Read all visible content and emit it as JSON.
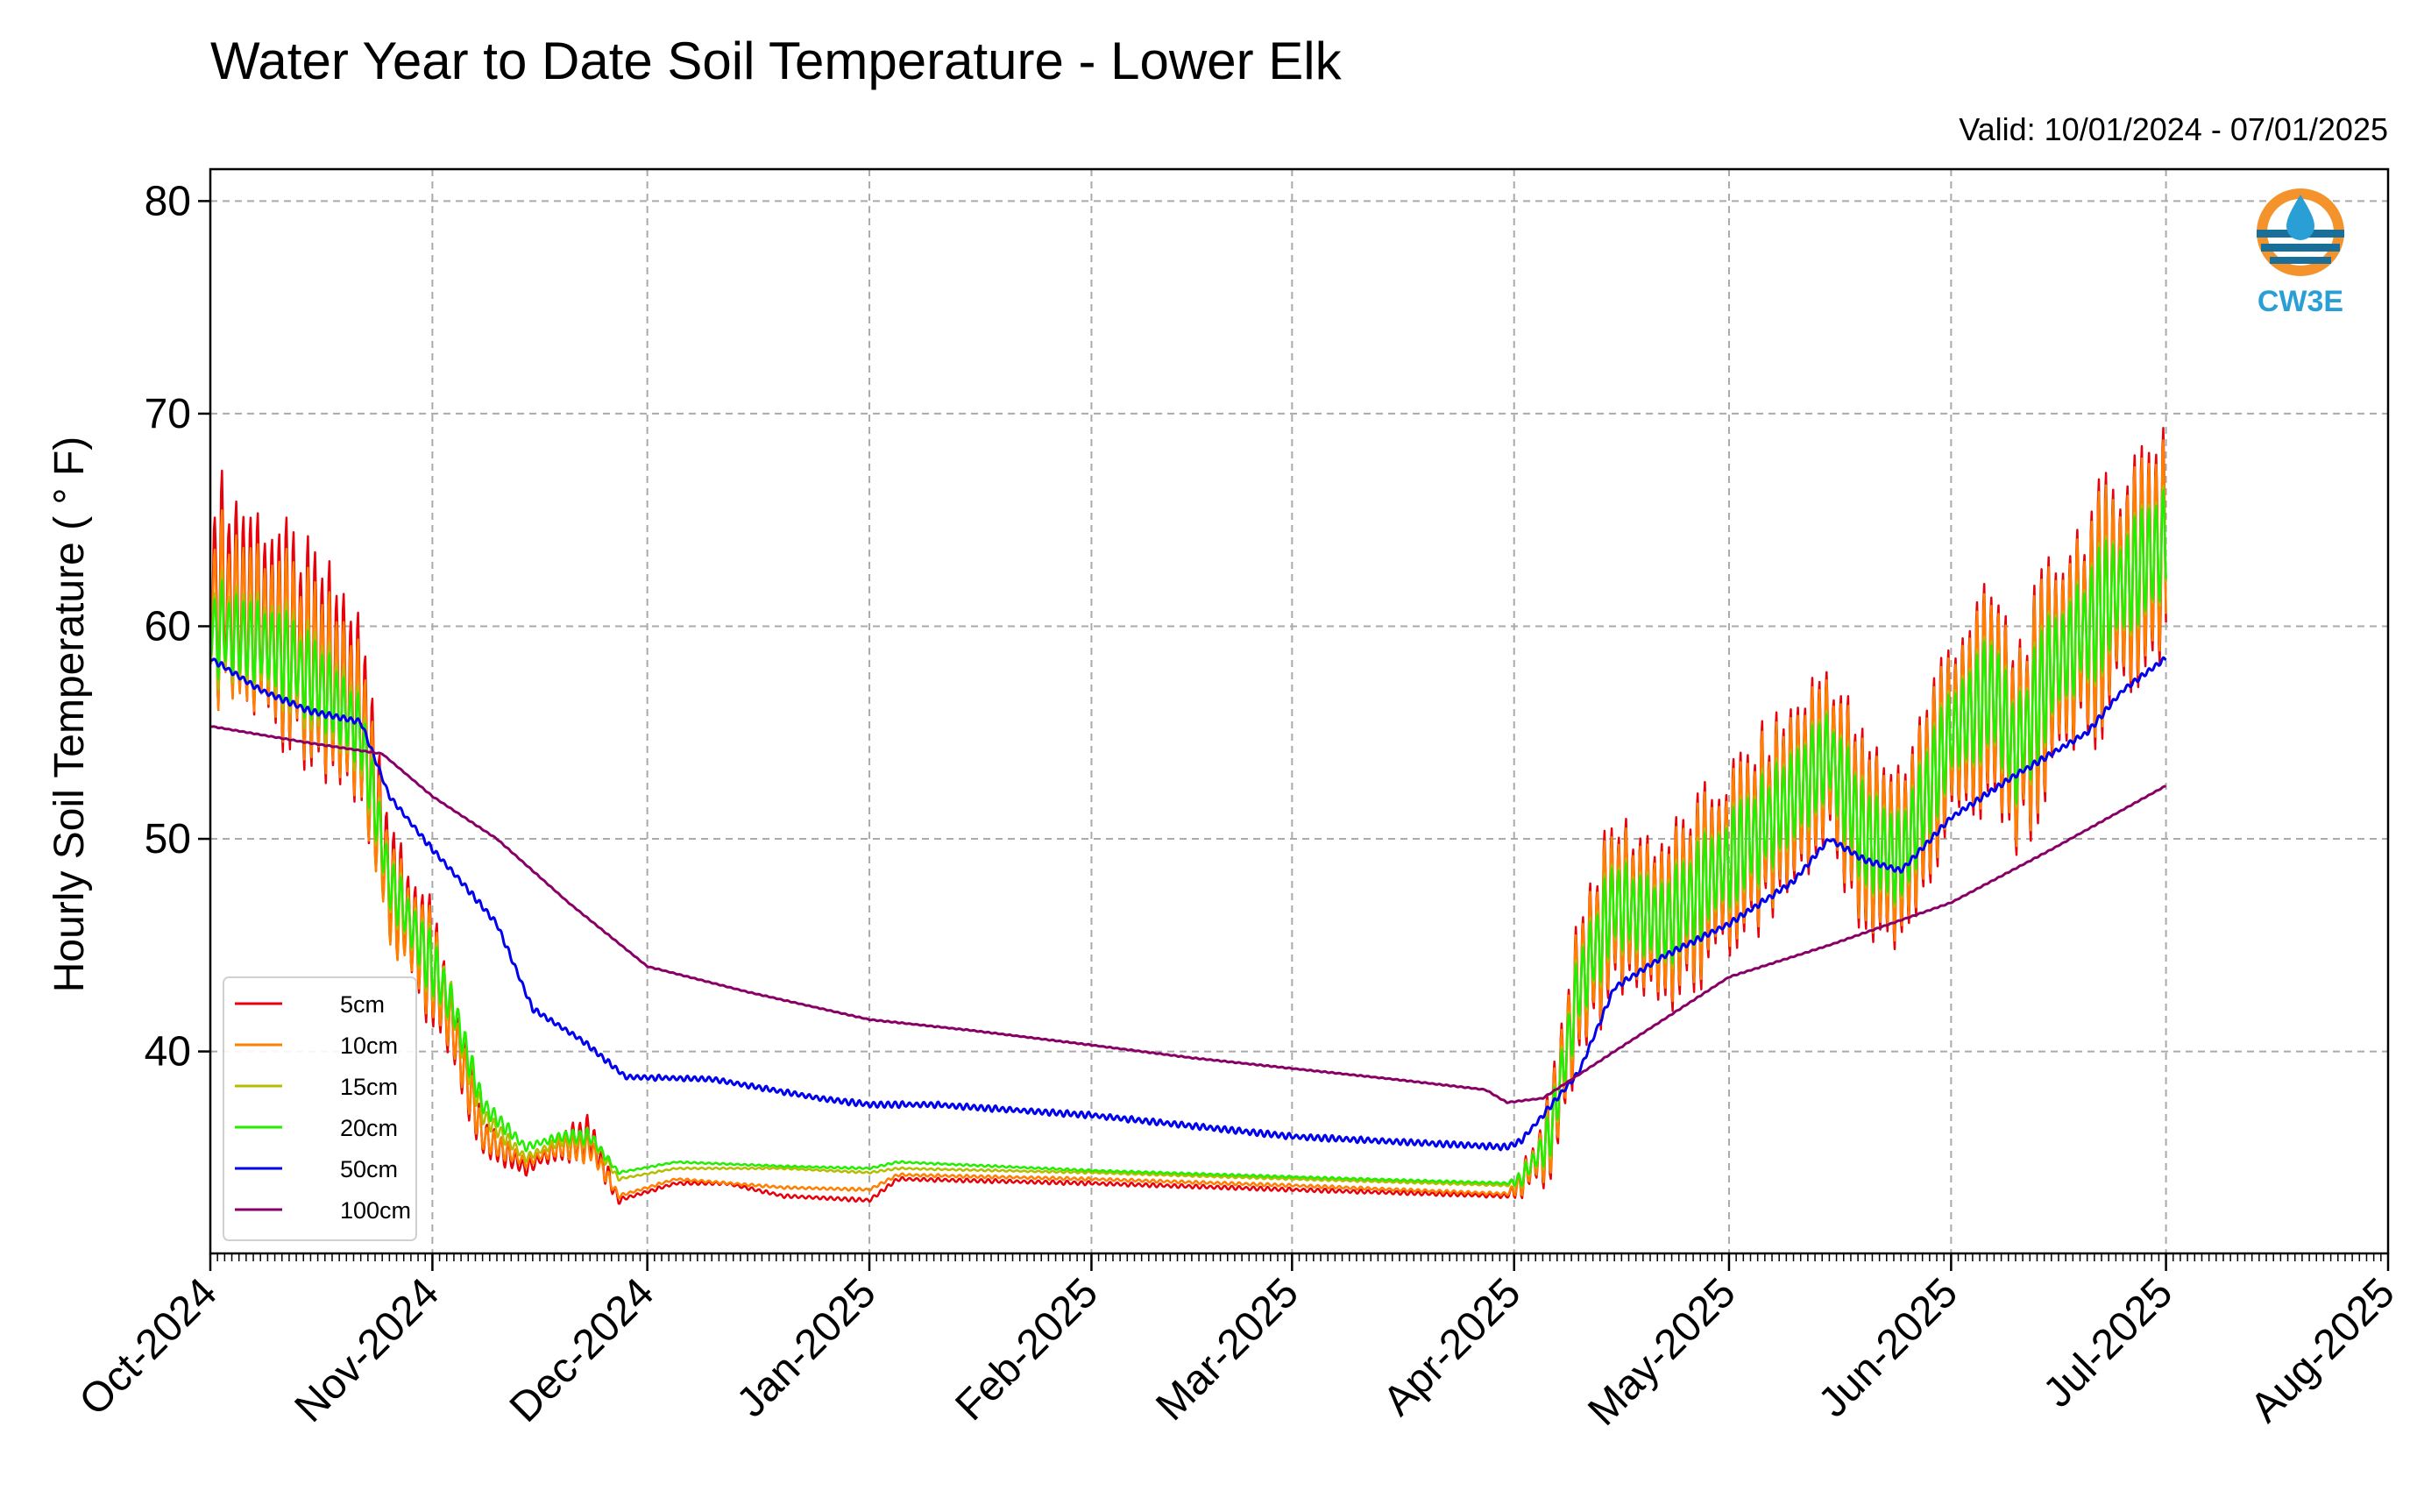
{
  "chart_data": {
    "type": "line",
    "title": "Water Year to Date Soil Temperature - Lower Elk",
    "subtitle": "Valid: 10/01/2024 - 07/01/2025",
    "ylabel": "Hourly Soil Temperature ( ° F)",
    "xlabel": "",
    "xlim": [
      "2024-10-01",
      "2025-08-01"
    ],
    "ylim": [
      30.5,
      81.5
    ],
    "yticks": [
      40,
      50,
      60,
      70,
      80
    ],
    "xticks": [
      {
        "date": "2024-10-01",
        "label": "Oct-2024"
      },
      {
        "date": "2024-11-01",
        "label": "Nov-2024"
      },
      {
        "date": "2024-12-01",
        "label": "Dec-2024"
      },
      {
        "date": "2025-01-01",
        "label": "Jan-2025"
      },
      {
        "date": "2025-02-01",
        "label": "Feb-2025"
      },
      {
        "date": "2025-03-01",
        "label": "Mar-2025"
      },
      {
        "date": "2025-04-01",
        "label": "Apr-2025"
      },
      {
        "date": "2025-05-01",
        "label": "May-2025"
      },
      {
        "date": "2025-06-01",
        "label": "Jun-2025"
      },
      {
        "date": "2025-07-01",
        "label": "Jul-2025"
      },
      {
        "date": "2025-08-01",
        "label": "Aug-2025"
      }
    ],
    "grid": true,
    "legend_position": "lower-left",
    "logo_text": "CW3E",
    "series": [
      {
        "name": "5cm",
        "color": "#e8000b",
        "mean": [
          [
            "2024-10-01",
            62
          ],
          [
            "2024-10-10",
            60
          ],
          [
            "2024-10-17",
            58
          ],
          [
            "2024-10-22",
            56
          ],
          [
            "2024-10-26",
            48
          ],
          [
            "2024-11-01",
            44
          ],
          [
            "2024-11-04",
            41
          ],
          [
            "2024-11-08",
            36
          ],
          [
            "2024-11-14",
            34.5
          ],
          [
            "2024-11-19",
            35.5
          ],
          [
            "2024-11-23",
            36
          ],
          [
            "2024-11-27",
            33
          ],
          [
            "2024-12-05",
            33.8
          ],
          [
            "2024-12-12",
            33.8
          ],
          [
            "2024-12-20",
            33.2
          ],
          [
            "2025-01-01",
            33
          ],
          [
            "2025-01-05",
            34
          ],
          [
            "2025-02-01",
            33.8
          ],
          [
            "2025-03-01",
            33.5
          ],
          [
            "2025-03-31",
            33.2
          ],
          [
            "2025-04-02",
            33.8
          ],
          [
            "2025-04-06",
            36
          ],
          [
            "2025-04-10",
            43
          ],
          [
            "2025-04-15",
            47
          ],
          [
            "2025-04-22",
            46
          ],
          [
            "2025-05-01",
            49
          ],
          [
            "2025-05-10",
            52
          ],
          [
            "2025-05-15",
            54
          ],
          [
            "2025-05-20",
            50
          ],
          [
            "2025-05-25",
            49
          ],
          [
            "2025-06-01",
            55
          ],
          [
            "2025-06-07",
            57
          ],
          [
            "2025-06-10",
            54
          ],
          [
            "2025-06-15",
            58
          ],
          [
            "2025-06-20",
            60
          ],
          [
            "2025-06-25",
            62
          ],
          [
            "2025-07-01",
            64
          ]
        ],
        "amp": [
          [
            "2024-10-01",
            12
          ],
          [
            "2024-10-20",
            11
          ],
          [
            "2024-10-26",
            8
          ],
          [
            "2024-11-02",
            6
          ],
          [
            "2024-11-08",
            2
          ],
          [
            "2024-11-16",
            0.5
          ],
          [
            "2024-11-21",
            3
          ],
          [
            "2024-11-26",
            1
          ],
          [
            "2024-11-28",
            0.2
          ],
          [
            "2025-03-31",
            0.2
          ],
          [
            "2025-04-04",
            3
          ],
          [
            "2025-04-10",
            9
          ],
          [
            "2025-05-01",
            10
          ],
          [
            "2025-06-01",
            11
          ],
          [
            "2025-06-15",
            12
          ],
          [
            "2025-07-01",
            14
          ]
        ]
      },
      {
        "name": "10cm",
        "color": "#ff7f00",
        "mean": [
          [
            "2024-10-01",
            61
          ],
          [
            "2024-10-10",
            59.5
          ],
          [
            "2024-10-17",
            57.5
          ],
          [
            "2024-10-22",
            55.5
          ],
          [
            "2024-10-26",
            47.5
          ],
          [
            "2024-11-01",
            44
          ],
          [
            "2024-11-04",
            41
          ],
          [
            "2024-11-08",
            36
          ],
          [
            "2024-11-14",
            34.8
          ],
          [
            "2024-11-19",
            35.5
          ],
          [
            "2024-11-23",
            35.5
          ],
          [
            "2024-11-27",
            33.2
          ],
          [
            "2024-12-05",
            34
          ],
          [
            "2024-12-20",
            33.6
          ],
          [
            "2025-01-01",
            33.5
          ],
          [
            "2025-01-05",
            34.2
          ],
          [
            "2025-02-01",
            34
          ],
          [
            "2025-03-01",
            33.7
          ],
          [
            "2025-03-31",
            33.3
          ],
          [
            "2025-04-02",
            33.8
          ],
          [
            "2025-04-06",
            36
          ],
          [
            "2025-04-10",
            43
          ],
          [
            "2025-04-15",
            47
          ],
          [
            "2025-04-22",
            46
          ],
          [
            "2025-05-01",
            49
          ],
          [
            "2025-05-10",
            52
          ],
          [
            "2025-05-15",
            54
          ],
          [
            "2025-05-20",
            50
          ],
          [
            "2025-05-25",
            49
          ],
          [
            "2025-06-01",
            55
          ],
          [
            "2025-06-07",
            57
          ],
          [
            "2025-06-10",
            54
          ],
          [
            "2025-06-15",
            58
          ],
          [
            "2025-06-20",
            60
          ],
          [
            "2025-06-25",
            62
          ],
          [
            "2025-07-01",
            64
          ]
        ],
        "amp": [
          [
            "2024-10-01",
            10
          ],
          [
            "2024-10-20",
            9
          ],
          [
            "2024-10-26",
            7
          ],
          [
            "2024-11-02",
            5
          ],
          [
            "2024-11-08",
            1.5
          ],
          [
            "2024-11-16",
            0.4
          ],
          [
            "2024-11-21",
            2
          ],
          [
            "2024-11-26",
            0.6
          ],
          [
            "2024-11-28",
            0.15
          ],
          [
            "2025-03-31",
            0.15
          ],
          [
            "2025-04-04",
            2.5
          ],
          [
            "2025-04-10",
            8
          ],
          [
            "2025-05-01",
            9
          ],
          [
            "2025-06-01",
            10
          ],
          [
            "2025-06-15",
            11
          ],
          [
            "2025-07-01",
            12.5
          ]
        ]
      },
      {
        "name": "15cm",
        "color": "#b5bd00",
        "mean": [
          [
            "2024-10-01",
            60
          ],
          [
            "2024-10-10",
            59
          ],
          [
            "2024-10-17",
            57
          ],
          [
            "2024-10-22",
            55
          ],
          [
            "2024-10-26",
            48
          ],
          [
            "2024-11-01",
            44
          ],
          [
            "2024-11-04",
            42
          ],
          [
            "2024-11-08",
            37
          ],
          [
            "2024-11-14",
            35
          ],
          [
            "2024-11-19",
            35.8
          ],
          [
            "2024-11-23",
            36
          ],
          [
            "2024-11-27",
            34
          ],
          [
            "2024-12-05",
            34.5
          ],
          [
            "2024-12-20",
            34.5
          ],
          [
            "2025-01-01",
            34.3
          ],
          [
            "2025-01-05",
            34.5
          ],
          [
            "2025-02-01",
            34.3
          ],
          [
            "2025-03-01",
            34
          ],
          [
            "2025-03-31",
            33.7
          ],
          [
            "2025-04-02",
            34
          ],
          [
            "2025-04-06",
            36
          ],
          [
            "2025-04-10",
            43
          ],
          [
            "2025-04-15",
            47
          ],
          [
            "2025-04-22",
            46
          ],
          [
            "2025-05-01",
            49
          ],
          [
            "2025-05-10",
            52
          ],
          [
            "2025-05-15",
            54
          ],
          [
            "2025-05-20",
            50
          ],
          [
            "2025-05-25",
            49
          ],
          [
            "2025-06-01",
            55
          ],
          [
            "2025-06-07",
            57
          ],
          [
            "2025-06-10",
            54
          ],
          [
            "2025-06-15",
            58
          ],
          [
            "2025-06-20",
            60
          ],
          [
            "2025-06-25",
            62
          ],
          [
            "2025-07-01",
            64
          ]
        ],
        "amp": [
          [
            "2024-10-01",
            6
          ],
          [
            "2024-10-20",
            5
          ],
          [
            "2024-10-26",
            4
          ],
          [
            "2024-11-02",
            3.5
          ],
          [
            "2024-11-08",
            1
          ],
          [
            "2024-11-16",
            0.3
          ],
          [
            "2024-11-21",
            1.2
          ],
          [
            "2024-11-26",
            0.4
          ],
          [
            "2024-11-28",
            0.1
          ],
          [
            "2025-03-31",
            0.1
          ],
          [
            "2025-04-04",
            1.8
          ],
          [
            "2025-04-10",
            5
          ],
          [
            "2025-05-01",
            5.5
          ],
          [
            "2025-06-01",
            6
          ],
          [
            "2025-06-15",
            6.5
          ],
          [
            "2025-07-01",
            7
          ]
        ]
      },
      {
        "name": "20cm",
        "color": "#22ee00",
        "mean": [
          [
            "2024-10-01",
            60
          ],
          [
            "2024-10-10",
            59
          ],
          [
            "2024-10-17",
            57
          ],
          [
            "2024-10-22",
            55
          ],
          [
            "2024-10-26",
            48
          ],
          [
            "2024-11-01",
            44
          ],
          [
            "2024-11-04",
            42
          ],
          [
            "2024-11-08",
            37.5
          ],
          [
            "2024-11-14",
            35.5
          ],
          [
            "2024-11-19",
            36
          ],
          [
            "2024-11-23",
            36
          ],
          [
            "2024-11-27",
            34.3
          ],
          [
            "2024-12-05",
            34.8
          ],
          [
            "2024-12-20",
            34.6
          ],
          [
            "2025-01-01",
            34.5
          ],
          [
            "2025-01-05",
            34.8
          ],
          [
            "2025-02-01",
            34.4
          ],
          [
            "2025-03-01",
            34.1
          ],
          [
            "2025-03-31",
            33.8
          ],
          [
            "2025-04-02",
            34
          ],
          [
            "2025-04-06",
            36
          ],
          [
            "2025-04-10",
            43
          ],
          [
            "2025-04-15",
            47
          ],
          [
            "2025-04-22",
            46
          ],
          [
            "2025-05-01",
            49
          ],
          [
            "2025-05-10",
            52
          ],
          [
            "2025-05-15",
            54
          ],
          [
            "2025-05-20",
            50
          ],
          [
            "2025-05-25",
            49
          ],
          [
            "2025-06-01",
            55
          ],
          [
            "2025-06-07",
            57
          ],
          [
            "2025-06-10",
            54
          ],
          [
            "2025-06-15",
            58
          ],
          [
            "2025-06-20",
            60
          ],
          [
            "2025-06-25",
            62
          ],
          [
            "2025-07-01",
            64
          ]
        ],
        "amp": [
          [
            "2024-10-01",
            5
          ],
          [
            "2024-10-20",
            4
          ],
          [
            "2024-10-26",
            3.5
          ],
          [
            "2024-11-02",
            3
          ],
          [
            "2024-11-08",
            1
          ],
          [
            "2024-11-16",
            0.3
          ],
          [
            "2024-11-21",
            1
          ],
          [
            "2024-11-26",
            0.3
          ],
          [
            "2024-11-28",
            0.1
          ],
          [
            "2025-03-31",
            0.1
          ],
          [
            "2025-04-04",
            1.5
          ],
          [
            "2025-04-10",
            4.5
          ],
          [
            "2025-05-01",
            5
          ],
          [
            "2025-06-01",
            5.5
          ],
          [
            "2025-06-15",
            6
          ],
          [
            "2025-07-01",
            6.5
          ]
        ]
      },
      {
        "name": "50cm",
        "color": "#0000ee",
        "mean": [
          [
            "2024-10-01",
            58.5
          ],
          [
            "2024-10-08",
            57
          ],
          [
            "2024-10-15",
            56
          ],
          [
            "2024-10-22",
            55.5
          ],
          [
            "2024-10-26",
            52
          ],
          [
            "2024-11-01",
            49.5
          ],
          [
            "2024-11-05",
            48
          ],
          [
            "2024-11-10",
            46
          ],
          [
            "2024-11-15",
            42
          ],
          [
            "2024-11-22",
            40.5
          ],
          [
            "2024-11-28",
            38.8
          ],
          [
            "2024-12-10",
            38.7
          ],
          [
            "2024-12-25",
            37.8
          ],
          [
            "2025-01-01",
            37.5
          ],
          [
            "2025-01-10",
            37.5
          ],
          [
            "2025-02-01",
            37
          ],
          [
            "2025-03-01",
            36
          ],
          [
            "2025-03-31",
            35.5
          ],
          [
            "2025-04-02",
            35.8
          ],
          [
            "2025-04-10",
            39
          ],
          [
            "2025-04-15",
            43
          ],
          [
            "2025-04-22",
            44.5
          ],
          [
            "2025-05-01",
            46
          ],
          [
            "2025-05-10",
            48
          ],
          [
            "2025-05-15",
            50
          ],
          [
            "2025-05-20",
            49
          ],
          [
            "2025-05-25",
            48.5
          ],
          [
            "2025-06-01",
            51
          ],
          [
            "2025-06-10",
            53
          ],
          [
            "2025-06-15",
            54
          ],
          [
            "2025-06-20",
            55
          ],
          [
            "2025-06-25",
            57
          ],
          [
            "2025-07-01",
            58.5
          ]
        ],
        "amp": [
          [
            "2024-10-01",
            0.3
          ],
          [
            "2025-07-01",
            0.3
          ]
        ]
      },
      {
        "name": "100cm",
        "color": "#880066",
        "mean": [
          [
            "2024-10-01",
            55.3
          ],
          [
            "2024-10-15",
            54.5
          ],
          [
            "2024-10-25",
            54
          ],
          [
            "2024-11-01",
            52
          ],
          [
            "2024-11-10",
            50
          ],
          [
            "2024-11-20",
            47
          ],
          [
            "2024-12-01",
            44
          ],
          [
            "2024-12-15",
            42.8
          ],
          [
            "2025-01-01",
            41.5
          ],
          [
            "2025-01-15",
            41
          ],
          [
            "2025-02-01",
            40.3
          ],
          [
            "2025-02-15",
            39.7
          ],
          [
            "2025-03-01",
            39.2
          ],
          [
            "2025-03-15",
            38.7
          ],
          [
            "2025-03-28",
            38.2
          ],
          [
            "2025-03-31",
            37.6
          ],
          [
            "2025-04-05",
            37.8
          ],
          [
            "2025-04-15",
            40
          ],
          [
            "2025-05-01",
            43.5
          ],
          [
            "2025-05-15",
            45
          ],
          [
            "2025-06-01",
            47
          ],
          [
            "2025-06-15",
            49.5
          ],
          [
            "2025-07-01",
            52.5
          ]
        ],
        "amp": [
          [
            "2024-10-01",
            0.05
          ],
          [
            "2025-07-01",
            0.05
          ]
        ]
      }
    ]
  }
}
